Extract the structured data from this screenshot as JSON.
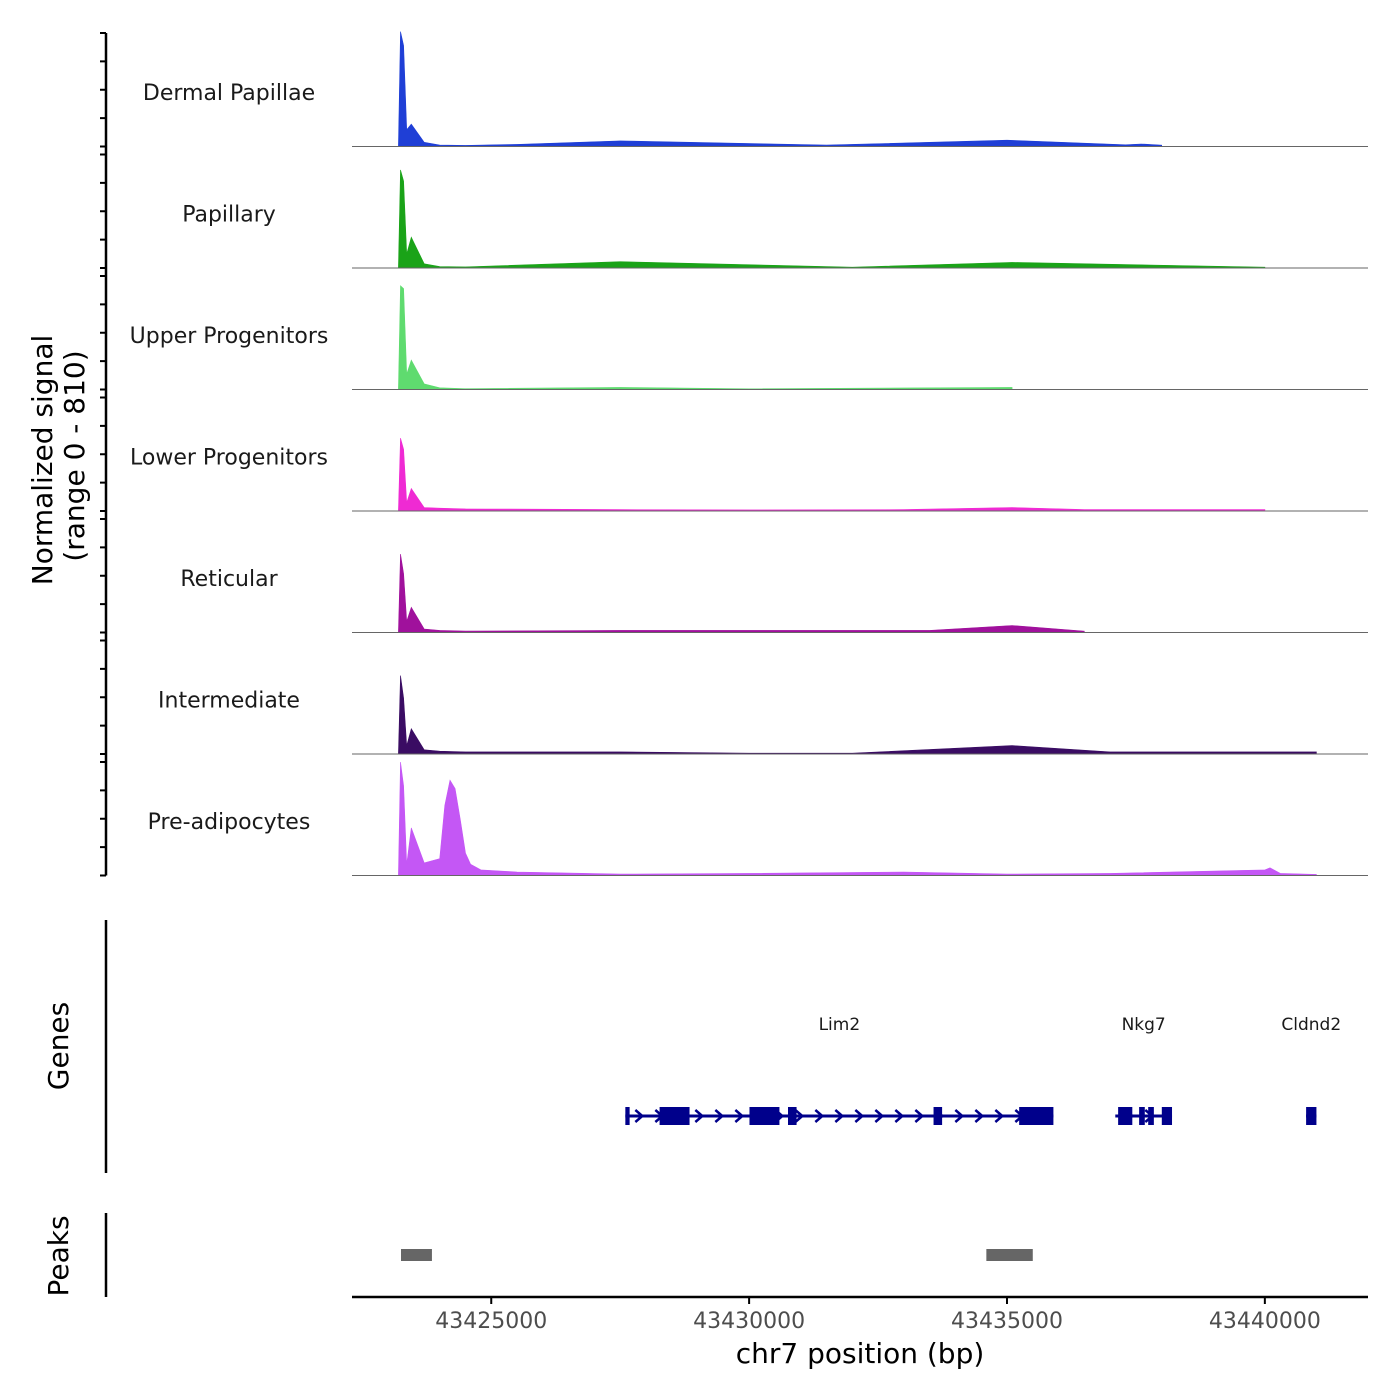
{
  "chart_data": {
    "type": "area",
    "title": "",
    "region": {
      "chrom": "chr7",
      "start": 43422300,
      "end": 43442000
    },
    "xlabel": "chr7 position (bp)",
    "x_ticks": [
      43425000,
      43430000,
      43435000,
      43440000
    ],
    "x_tick_labels": [
      "43425000",
      "43430000",
      "43435000",
      "43440000"
    ],
    "ylabel": "Normalized signal",
    "ylabel_range": "(range 0 - 810)",
    "ylim": [
      0,
      810
    ],
    "series": [
      {
        "name": "Dermal Papillae",
        "color": "#1f3fd6",
        "x": [
          43423200,
          43423240,
          43423300,
          43423360,
          43423450,
          43423700,
          43424000,
          43424500,
          43425500,
          43427500,
          43431500,
          43435000,
          43437300,
          43437600,
          43438000
        ],
        "values": [
          0,
          820,
          720,
          120,
          160,
          30,
          10,
          8,
          15,
          40,
          10,
          45,
          12,
          18,
          10
        ]
      },
      {
        "name": "Papillary",
        "color": "#1aa318",
        "x": [
          43423200,
          43423240,
          43423300,
          43423360,
          43423450,
          43423700,
          43424000,
          43424500,
          43427500,
          43432000,
          43435100,
          43440000
        ],
        "values": [
          0,
          700,
          620,
          100,
          220,
          30,
          10,
          8,
          45,
          6,
          40,
          6
        ]
      },
      {
        "name": "Upper Progenitors",
        "color": "#5fdb6f",
        "x": [
          43423200,
          43423240,
          43423300,
          43423360,
          43423450,
          43423700,
          43424000,
          43424500,
          43427500,
          43430000,
          43435100
        ],
        "values": [
          0,
          740,
          720,
          110,
          210,
          40,
          12,
          6,
          15,
          5,
          15
        ]
      },
      {
        "name": "Lower Progenitors",
        "color": "#ef2ad3",
        "x": [
          43423200,
          43423240,
          43423300,
          43423360,
          43423450,
          43423700,
          43424000,
          43424500,
          43427500,
          43430000,
          43433000,
          43435100,
          43436500,
          43440000
        ],
        "values": [
          0,
          520,
          440,
          60,
          160,
          25,
          20,
          15,
          10,
          8,
          10,
          25,
          10,
          10
        ]
      },
      {
        "name": "Reticular",
        "color": "#a0119c",
        "x": [
          43423200,
          43423240,
          43423300,
          43423360,
          43423450,
          43423700,
          43424000,
          43424500,
          43427500,
          43430700,
          43433500,
          43435100,
          43436500
        ],
        "values": [
          0,
          560,
          420,
          80,
          180,
          25,
          15,
          10,
          15,
          15,
          15,
          50,
          10
        ]
      },
      {
        "name": "Intermediate",
        "color": "#3a0c63",
        "x": [
          43423200,
          43423240,
          43423300,
          43423360,
          43423450,
          43423700,
          43424000,
          43424500,
          43427500,
          43430000,
          43432000,
          43435100,
          43437000,
          43441000
        ],
        "values": [
          0,
          560,
          400,
          60,
          180,
          30,
          20,
          15,
          15,
          6,
          6,
          60,
          15,
          15
        ]
      },
      {
        "name": "Pre-adipocytes",
        "color": "#c457f5",
        "x": [
          43423200,
          43423240,
          43423300,
          43423360,
          43423450,
          43423700,
          43424000,
          43424100,
          43424200,
          43424300,
          43424400,
          43424500,
          43424600,
          43424800,
          43425500,
          43427500,
          43430000,
          43433000,
          43435000,
          43437000,
          43440000,
          43440100,
          43440300,
          43441000
        ],
        "values": [
          0,
          810,
          640,
          80,
          340,
          90,
          120,
          500,
          680,
          620,
          400,
          160,
          80,
          40,
          25,
          10,
          15,
          25,
          10,
          15,
          40,
          55,
          15,
          8
        ]
      }
    ],
    "genes": [
      {
        "name": "Lim2",
        "start": 43427600,
        "end": 43435900,
        "strand": "+"
      },
      {
        "name": "Nkg7",
        "start": 43437100,
        "end": 43438200,
        "strand": "+"
      },
      {
        "name": "Cldnd2",
        "start": 43440800,
        "end": 43441000,
        "strand": "+"
      }
    ],
    "genes_label": "Genes",
    "peaks": [
      {
        "start": 43423250,
        "end": 43423850
      },
      {
        "start": 43434600,
        "end": 43435500
      }
    ],
    "peaks_label": "Peaks"
  },
  "colors": {
    "gene": "#00008b",
    "peak": "#666666",
    "baseline": "#666666",
    "axis": "#000000",
    "tick_label": "#4d4d4d"
  }
}
